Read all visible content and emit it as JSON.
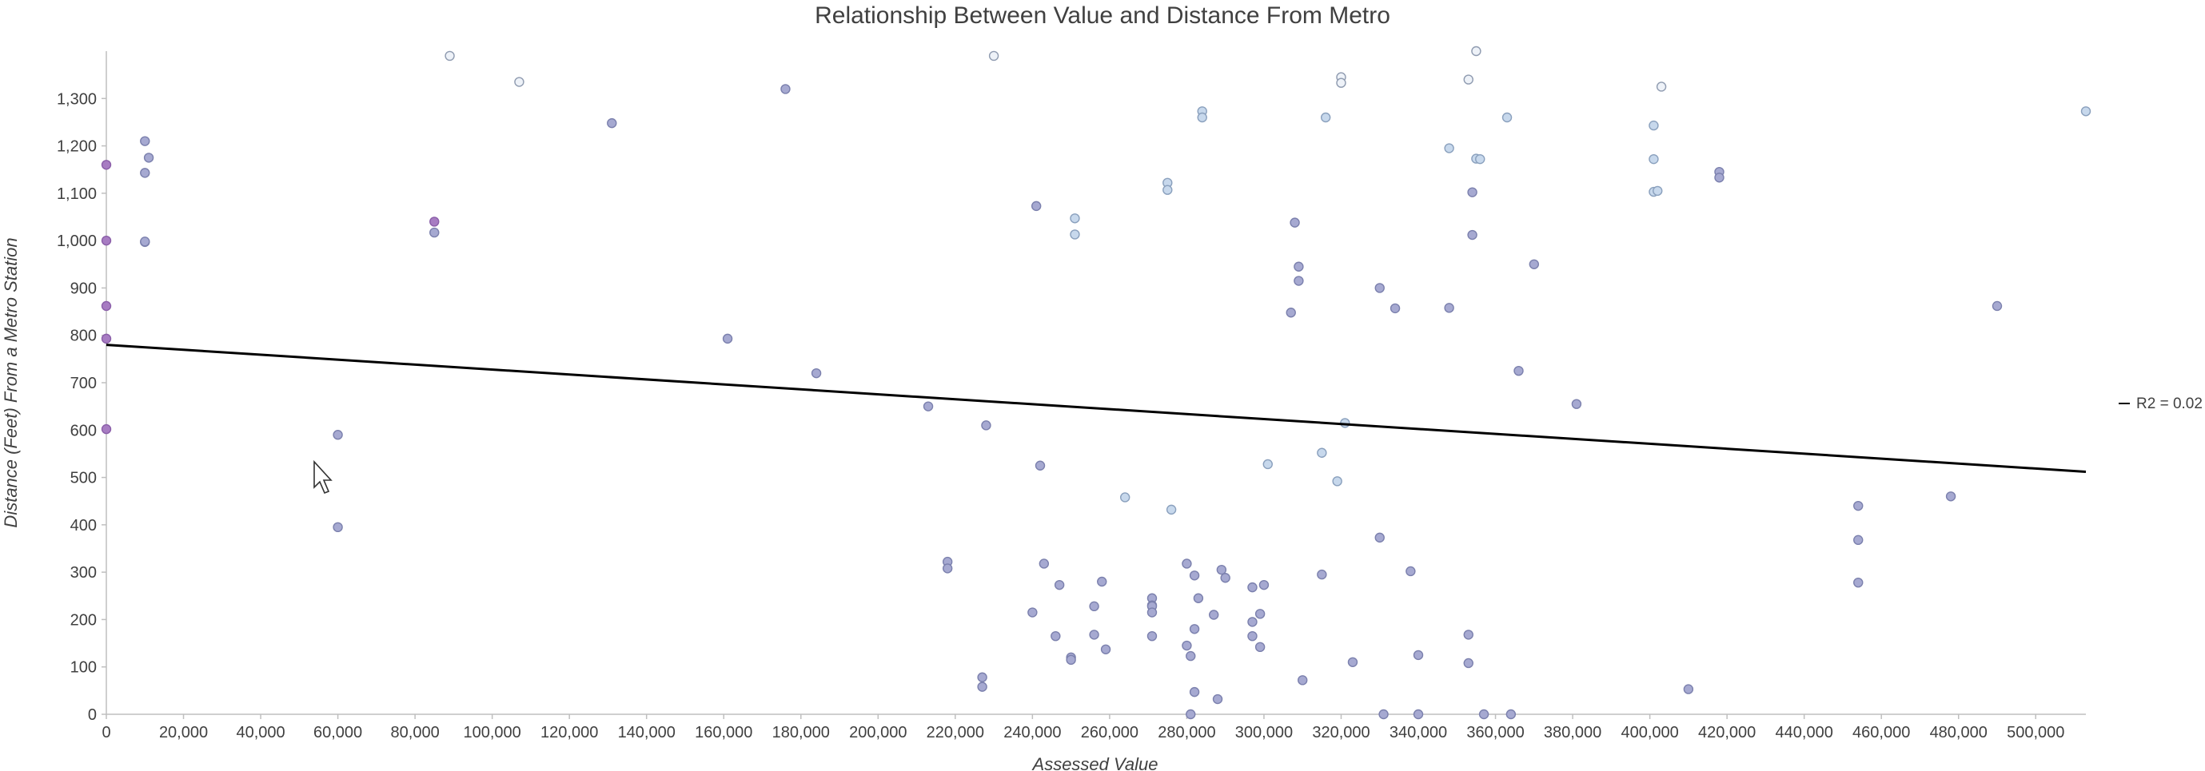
{
  "chart_data": {
    "type": "scatter",
    "title": "Relationship Between Value and Distance From Metro",
    "xlabel": "Assessed Value",
    "ylabel": "Distance (Feet) From a Metro Station",
    "xlim": [
      0,
      513000
    ],
    "ylim": [
      0,
      1400
    ],
    "x_ticks": [
      0,
      20000,
      40000,
      60000,
      80000,
      100000,
      120000,
      140000,
      160000,
      180000,
      200000,
      220000,
      240000,
      260000,
      280000,
      300000,
      320000,
      340000,
      360000,
      380000,
      400000,
      420000,
      440000,
      460000,
      480000,
      500000
    ],
    "y_ticks": [
      0,
      100,
      200,
      300,
      400,
      500,
      600,
      700,
      800,
      900,
      1000,
      1100,
      1200,
      1300
    ],
    "x_tick_labels": [
      "0",
      "20,000",
      "40,000",
      "60,000",
      "80,000",
      "100,000",
      "120,000",
      "140,000",
      "160,000",
      "180,000",
      "200,000",
      "220,000",
      "240,000",
      "260,000",
      "280,000",
      "300,000",
      "320,000",
      "340,000",
      "360,000",
      "380,000",
      "400,000",
      "420,000",
      "440,000",
      "460,000",
      "480,000",
      "500,000"
    ],
    "y_tick_labels": [
      "0",
      "100",
      "200",
      "300",
      "400",
      "500",
      "600",
      "700",
      "800",
      "900",
      "1,000",
      "1,100",
      "1,200",
      "1,300"
    ],
    "grid": false,
    "legend": {
      "position": "right",
      "entries": [
        "R2 = 0.02"
      ]
    },
    "trendline": {
      "type": "linear",
      "x": [
        0,
        513000
      ],
      "y": [
        780,
        512
      ]
    },
    "colors": {
      "purple": "#a77cc2",
      "slate": "#a6a9d1",
      "light": "#c7d8ec",
      "pale": "#eef2f8",
      "trend": "#000000",
      "axis": "#bfbfbf"
    },
    "points": [
      {
        "x": 0,
        "y": 1160,
        "c": "purple"
      },
      {
        "x": 0,
        "y": 1000,
        "c": "purple"
      },
      {
        "x": 0,
        "y": 862,
        "c": "purple"
      },
      {
        "x": 0,
        "y": 793,
        "c": "purple"
      },
      {
        "x": 0,
        "y": 602,
        "c": "purple"
      },
      {
        "x": 10000,
        "y": 1210,
        "c": "slate"
      },
      {
        "x": 11000,
        "y": 1175,
        "c": "slate"
      },
      {
        "x": 10000,
        "y": 1143,
        "c": "slate"
      },
      {
        "x": 10000,
        "y": 997,
        "c": "slate"
      },
      {
        "x": 10000,
        "y": 998,
        "c": "slate"
      },
      {
        "x": 60000,
        "y": 590,
        "c": "slate"
      },
      {
        "x": 60000,
        "y": 395,
        "c": "slate"
      },
      {
        "x": 85000,
        "y": 1040,
        "c": "purple"
      },
      {
        "x": 85000,
        "y": 1017,
        "c": "slate"
      },
      {
        "x": 89000,
        "y": 1390,
        "c": "pale"
      },
      {
        "x": 107000,
        "y": 1335,
        "c": "pale"
      },
      {
        "x": 131000,
        "y": 1248,
        "c": "slate"
      },
      {
        "x": 161000,
        "y": 793,
        "c": "slate"
      },
      {
        "x": 176000,
        "y": 1320,
        "c": "slate"
      },
      {
        "x": 184000,
        "y": 720,
        "c": "slate"
      },
      {
        "x": 213000,
        "y": 650,
        "c": "slate"
      },
      {
        "x": 218000,
        "y": 322,
        "c": "slate"
      },
      {
        "x": 218000,
        "y": 308,
        "c": "slate"
      },
      {
        "x": 227000,
        "y": 78,
        "c": "slate"
      },
      {
        "x": 227000,
        "y": 58,
        "c": "slate"
      },
      {
        "x": 228000,
        "y": 610,
        "c": "slate"
      },
      {
        "x": 230000,
        "y": 1390,
        "c": "pale"
      },
      {
        "x": 241000,
        "y": 1073,
        "c": "slate"
      },
      {
        "x": 240000,
        "y": 215,
        "c": "slate"
      },
      {
        "x": 242000,
        "y": 525,
        "c": "slate"
      },
      {
        "x": 243000,
        "y": 318,
        "c": "slate"
      },
      {
        "x": 246000,
        "y": 165,
        "c": "slate"
      },
      {
        "x": 247000,
        "y": 273,
        "c": "slate"
      },
      {
        "x": 250000,
        "y": 120,
        "c": "slate"
      },
      {
        "x": 250000,
        "y": 115,
        "c": "slate"
      },
      {
        "x": 251000,
        "y": 1047,
        "c": "light"
      },
      {
        "x": 251000,
        "y": 1013,
        "c": "light"
      },
      {
        "x": 256000,
        "y": 228,
        "c": "slate"
      },
      {
        "x": 256000,
        "y": 168,
        "c": "slate"
      },
      {
        "x": 258000,
        "y": 280,
        "c": "slate"
      },
      {
        "x": 259000,
        "y": 137,
        "c": "slate"
      },
      {
        "x": 264000,
        "y": 458,
        "c": "light"
      },
      {
        "x": 271000,
        "y": 245,
        "c": "slate"
      },
      {
        "x": 271000,
        "y": 230,
        "c": "slate"
      },
      {
        "x": 271000,
        "y": 228,
        "c": "slate"
      },
      {
        "x": 271000,
        "y": 215,
        "c": "slate"
      },
      {
        "x": 271000,
        "y": 165,
        "c": "slate"
      },
      {
        "x": 275000,
        "y": 1122,
        "c": "light"
      },
      {
        "x": 275000,
        "y": 1107,
        "c": "light"
      },
      {
        "x": 276000,
        "y": 432,
        "c": "light"
      },
      {
        "x": 280000,
        "y": 318,
        "c": "slate"
      },
      {
        "x": 280000,
        "y": 145,
        "c": "slate"
      },
      {
        "x": 281000,
        "y": 123,
        "c": "slate"
      },
      {
        "x": 281000,
        "y": 0,
        "c": "slate"
      },
      {
        "x": 282000,
        "y": 293,
        "c": "slate"
      },
      {
        "x": 282000,
        "y": 180,
        "c": "slate"
      },
      {
        "x": 282000,
        "y": 47,
        "c": "slate"
      },
      {
        "x": 283000,
        "y": 245,
        "c": "slate"
      },
      {
        "x": 284000,
        "y": 1273,
        "c": "light"
      },
      {
        "x": 284000,
        "y": 1260,
        "c": "light"
      },
      {
        "x": 287000,
        "y": 210,
        "c": "slate"
      },
      {
        "x": 288000,
        "y": 32,
        "c": "slate"
      },
      {
        "x": 289000,
        "y": 305,
        "c": "slate"
      },
      {
        "x": 290000,
        "y": 288,
        "c": "slate"
      },
      {
        "x": 297000,
        "y": 268,
        "c": "slate"
      },
      {
        "x": 297000,
        "y": 195,
        "c": "slate"
      },
      {
        "x": 297000,
        "y": 165,
        "c": "slate"
      },
      {
        "x": 299000,
        "y": 212,
        "c": "slate"
      },
      {
        "x": 299000,
        "y": 142,
        "c": "slate"
      },
      {
        "x": 300000,
        "y": 273,
        "c": "slate"
      },
      {
        "x": 301000,
        "y": 528,
        "c": "light"
      },
      {
        "x": 307000,
        "y": 848,
        "c": "slate"
      },
      {
        "x": 308000,
        "y": 1038,
        "c": "slate"
      },
      {
        "x": 309000,
        "y": 945,
        "c": "slate"
      },
      {
        "x": 309000,
        "y": 915,
        "c": "slate"
      },
      {
        "x": 310000,
        "y": 72,
        "c": "slate"
      },
      {
        "x": 315000,
        "y": 552,
        "c": "light"
      },
      {
        "x": 315000,
        "y": 295,
        "c": "slate"
      },
      {
        "x": 316000,
        "y": 1260,
        "c": "light"
      },
      {
        "x": 319000,
        "y": 492,
        "c": "light"
      },
      {
        "x": 320000,
        "y": 1345,
        "c": "pale"
      },
      {
        "x": 320000,
        "y": 1333,
        "c": "pale"
      },
      {
        "x": 321000,
        "y": 615,
        "c": "light"
      },
      {
        "x": 323000,
        "y": 110,
        "c": "slate"
      },
      {
        "x": 330000,
        "y": 900,
        "c": "slate"
      },
      {
        "x": 330000,
        "y": 373,
        "c": "slate"
      },
      {
        "x": 331000,
        "y": 0,
        "c": "slate"
      },
      {
        "x": 334000,
        "y": 857,
        "c": "slate"
      },
      {
        "x": 338000,
        "y": 302,
        "c": "slate"
      },
      {
        "x": 340000,
        "y": 125,
        "c": "slate"
      },
      {
        "x": 340000,
        "y": 0,
        "c": "slate"
      },
      {
        "x": 348000,
        "y": 1195,
        "c": "light"
      },
      {
        "x": 348000,
        "y": 858,
        "c": "slate"
      },
      {
        "x": 353000,
        "y": 1340,
        "c": "pale"
      },
      {
        "x": 353000,
        "y": 168,
        "c": "slate"
      },
      {
        "x": 353000,
        "y": 108,
        "c": "slate"
      },
      {
        "x": 354000,
        "y": 1102,
        "c": "slate"
      },
      {
        "x": 354000,
        "y": 1012,
        "c": "slate"
      },
      {
        "x": 355000,
        "y": 1173,
        "c": "light"
      },
      {
        "x": 355000,
        "y": 1400,
        "c": "pale"
      },
      {
        "x": 356000,
        "y": 1172,
        "c": "light"
      },
      {
        "x": 357000,
        "y": 0,
        "c": "slate"
      },
      {
        "x": 363000,
        "y": 1260,
        "c": "light"
      },
      {
        "x": 364000,
        "y": 0,
        "c": "slate"
      },
      {
        "x": 366000,
        "y": 725,
        "c": "slate"
      },
      {
        "x": 370000,
        "y": 950,
        "c": "slate"
      },
      {
        "x": 381000,
        "y": 655,
        "c": "slate"
      },
      {
        "x": 401000,
        "y": 1243,
        "c": "light"
      },
      {
        "x": 401000,
        "y": 1172,
        "c": "light"
      },
      {
        "x": 401000,
        "y": 1103,
        "c": "light"
      },
      {
        "x": 402000,
        "y": 1105,
        "c": "light"
      },
      {
        "x": 403000,
        "y": 1325,
        "c": "pale"
      },
      {
        "x": 410000,
        "y": 53,
        "c": "slate"
      },
      {
        "x": 418000,
        "y": 1145,
        "c": "slate"
      },
      {
        "x": 418000,
        "y": 1133,
        "c": "slate"
      },
      {
        "x": 454000,
        "y": 440,
        "c": "slate"
      },
      {
        "x": 454000,
        "y": 368,
        "c": "slate"
      },
      {
        "x": 454000,
        "y": 278,
        "c": "slate"
      },
      {
        "x": 478000,
        "y": 460,
        "c": "slate"
      },
      {
        "x": 490000,
        "y": 862,
        "c": "slate"
      },
      {
        "x": 513000,
        "y": 1273,
        "c": "light"
      }
    ]
  }
}
